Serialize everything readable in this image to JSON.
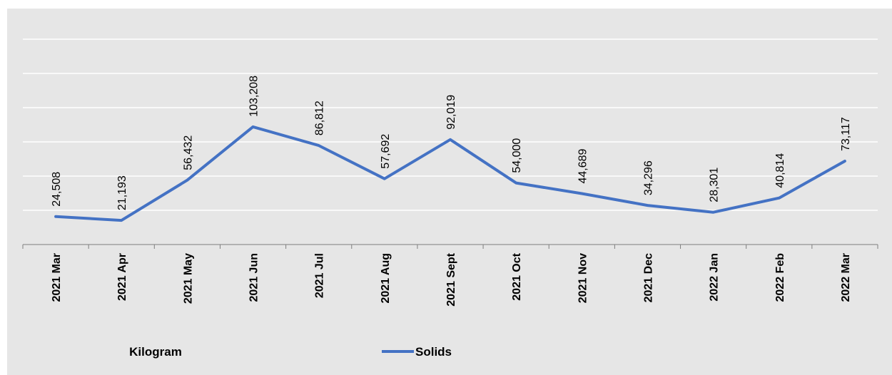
{
  "chart_data": {
    "type": "line",
    "categories": [
      "2021 Mar",
      "2021 Apr",
      "2021 May",
      "2021 Jun",
      "2021 Jul",
      "2021 Aug",
      "2021 Sept",
      "2021 Oct",
      "2021 Nov",
      "2021 Dec",
      "2022 Jan",
      "2022 Feb",
      "2022 Mar"
    ],
    "series": [
      {
        "name": "Solids",
        "values": [
          24508,
          21193,
          56432,
          103208,
          86812,
          57692,
          92019,
          54000,
          44689,
          34296,
          28301,
          40814,
          73117
        ],
        "labels": [
          "24,508",
          "21,193",
          "56,432",
          "103,208",
          "86,812",
          "57,692",
          "92,019",
          "54,000",
          "44,689",
          "34,296",
          "28,301",
          "40,814",
          "73,117"
        ]
      }
    ],
    "unit_label": "Kilogram",
    "ylim": [
      0,
      180000
    ],
    "grid": true,
    "legend_position": "bottom",
    "colors": {
      "line": "#4472c4",
      "plot_background": "#e5e5e5",
      "gridline": "#ffffff",
      "axis": "#7f7f7f"
    }
  }
}
